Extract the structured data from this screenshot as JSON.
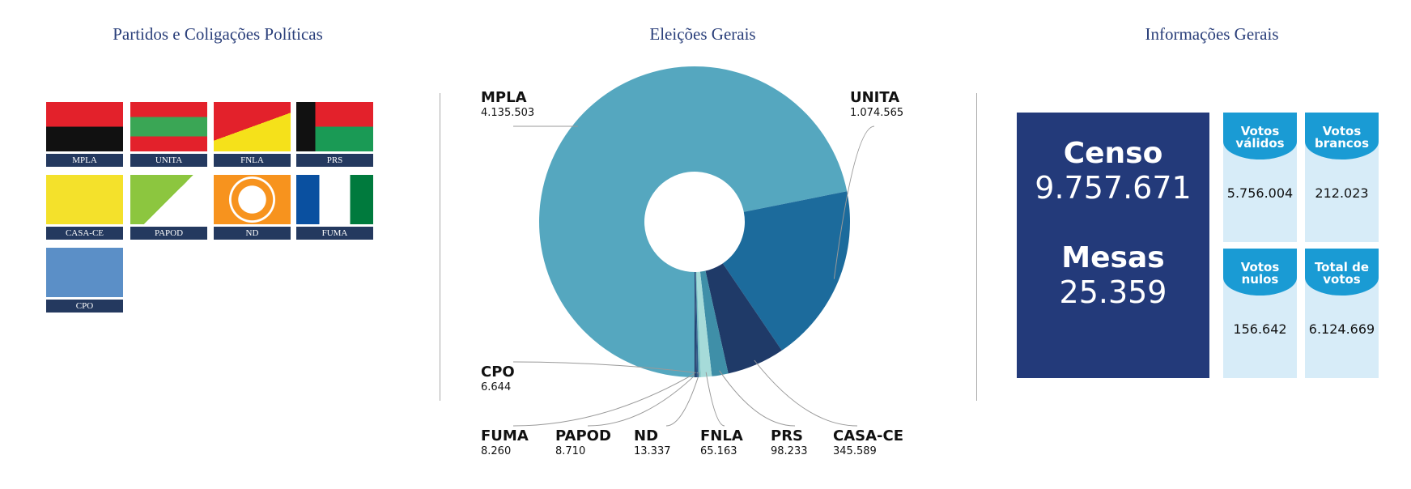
{
  "parties": {
    "title": "Partidos e Coligações Políticas",
    "items": [
      "MPLA",
      "UNITA",
      "FNLA",
      "PRS",
      "CASA-CE",
      "PAPOD",
      "ND",
      "FUMA",
      "CPO"
    ]
  },
  "chart_data": {
    "type": "pie",
    "title": "Eleições Gerais",
    "donut": true,
    "categories": [
      "MPLA",
      "UNITA",
      "CASA-CE",
      "PRS",
      "FNLA",
      "ND",
      "PAPOD",
      "FUMA",
      "CPO"
    ],
    "values": [
      4135503,
      1074565,
      345589,
      98233,
      65163,
      13337,
      8710,
      8260,
      6644
    ],
    "value_labels": [
      "4.135.503",
      "1.074.565",
      "345.589",
      "98.233",
      "65.163",
      "13.337",
      "8.710",
      "8.260",
      "6.644"
    ],
    "colors": [
      "#55a7bf",
      "#1c6b9c",
      "#1f3a68",
      "#3f8fa8",
      "#a6dbd9",
      "#7cc4c6",
      "#2c5a8a",
      "#264d7c",
      "#1b2f5e"
    ]
  },
  "info": {
    "title": "Informações Gerais",
    "censo": {
      "label": "Censo",
      "value": "9.757.671"
    },
    "mesas": {
      "label": "Mesas",
      "value": "25.359"
    },
    "boxes": [
      {
        "label": "Votos válidos",
        "value": "5.756.004"
      },
      {
        "label": "Votos brancos",
        "value": "212.023"
      },
      {
        "label": "Votos nulos",
        "value": "156.642"
      },
      {
        "label": "Total de votos",
        "value": "6.124.669"
      }
    ]
  }
}
